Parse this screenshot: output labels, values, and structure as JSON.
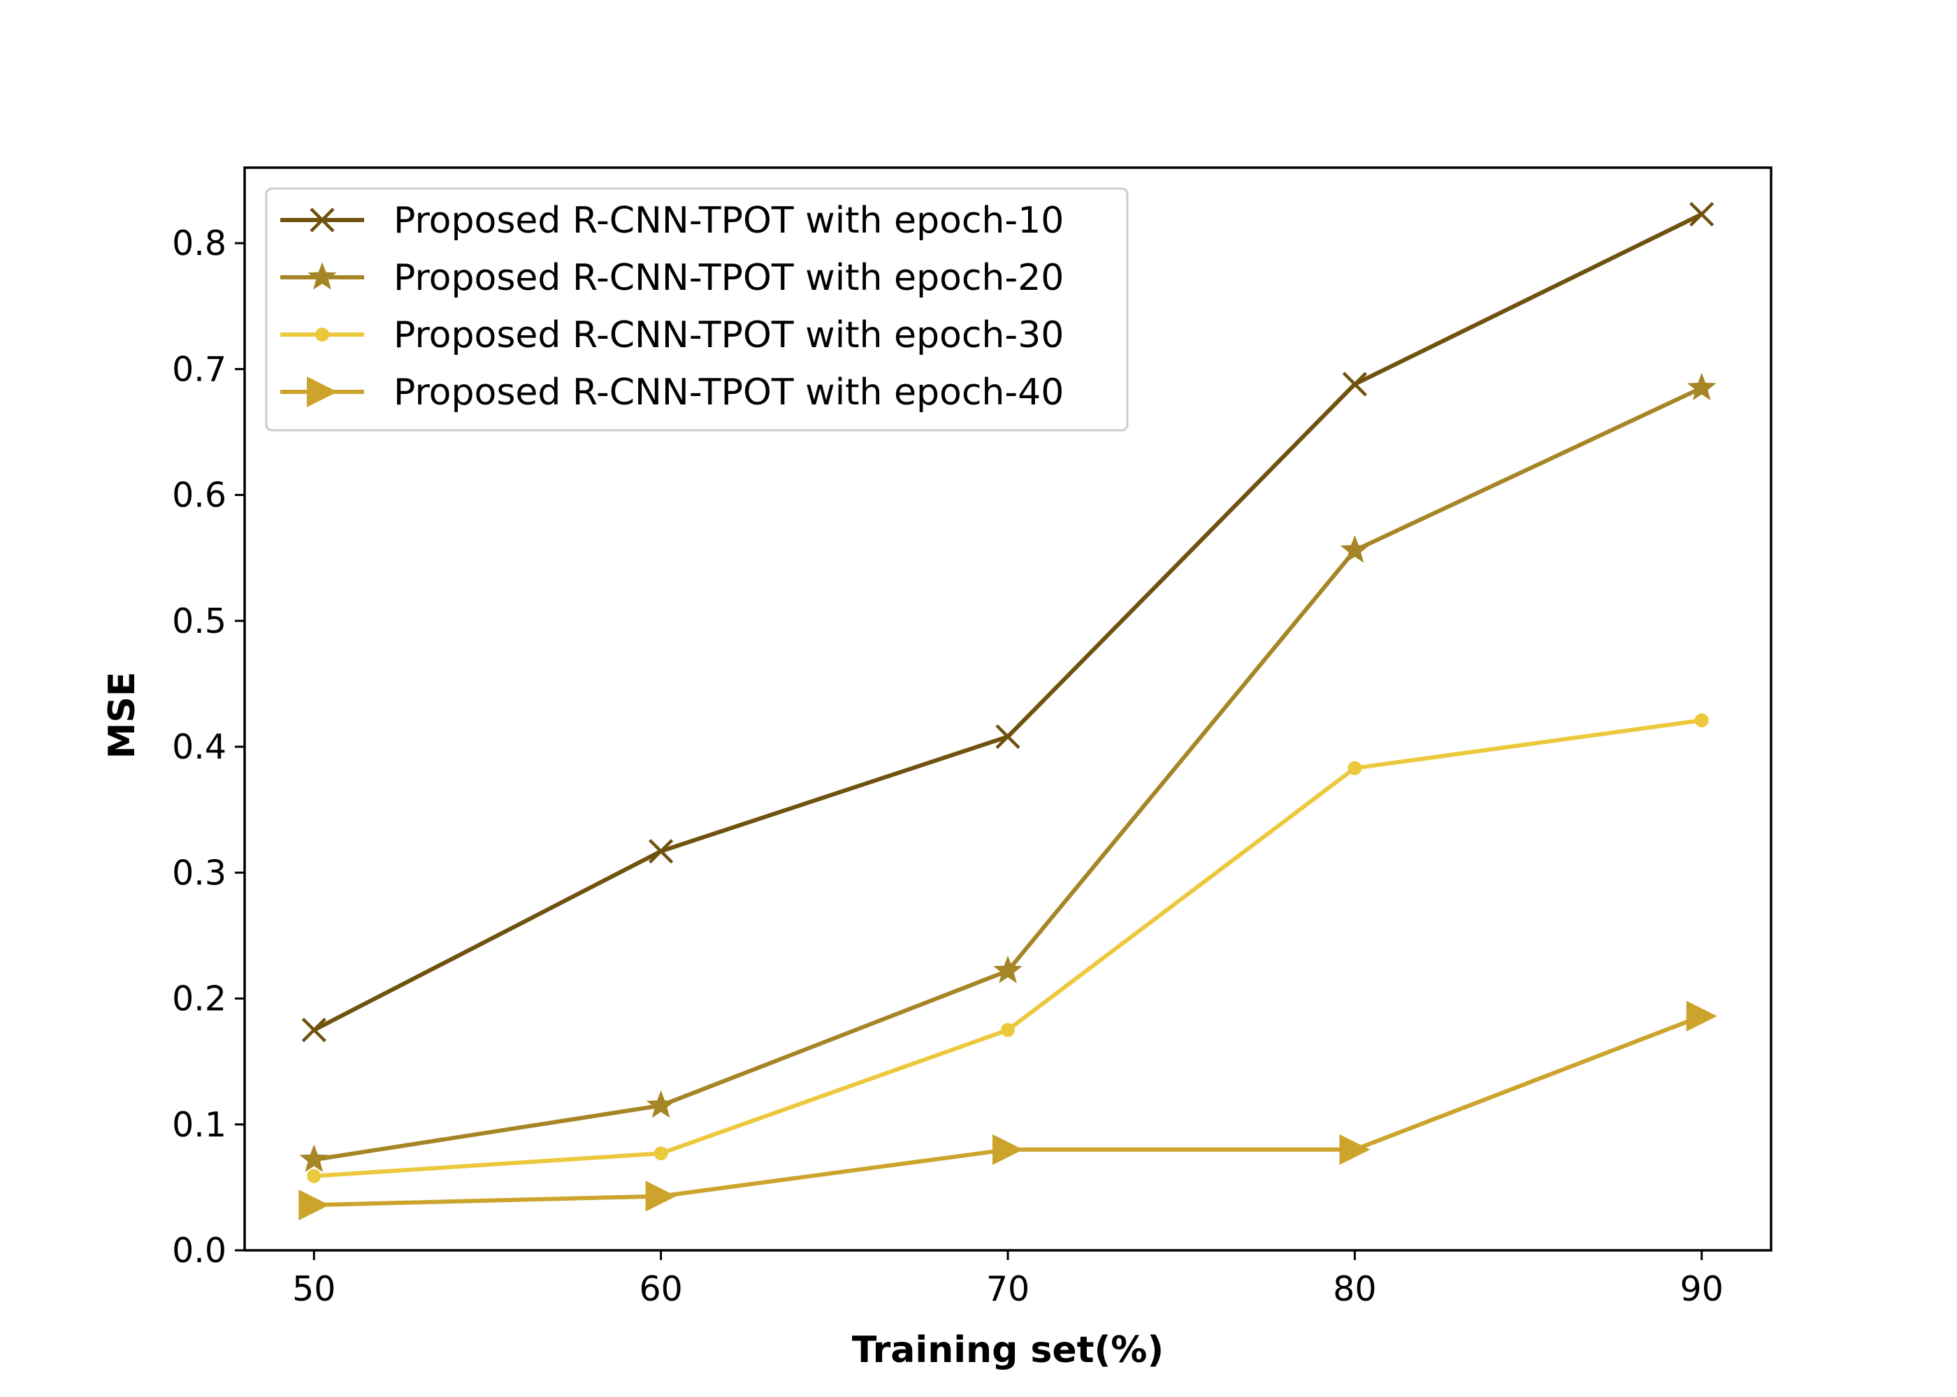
{
  "chart_data": {
    "type": "line",
    "xlabel": "Training set(%)",
    "ylabel": "MSE",
    "x": [
      50,
      60,
      70,
      80,
      90
    ],
    "xlim": [
      48,
      92
    ],
    "ylim": [
      0,
      0.86
    ],
    "xticks": [
      "50",
      "60",
      "70",
      "80",
      "90"
    ],
    "yticks": [
      "0.0",
      "0.1",
      "0.2",
      "0.3",
      "0.4",
      "0.5",
      "0.6",
      "0.7",
      "0.8"
    ],
    "grid": false,
    "legend_position": "upper-left",
    "series": [
      {
        "name": "Proposed R-CNN-TPOT with epoch-10",
        "color": "#6e520e",
        "marker": "x",
        "values": [
          0.175,
          0.317,
          0.408,
          0.688,
          0.823
        ]
      },
      {
        "name": "Proposed R-CNN-TPOT with epoch-20",
        "color": "#a68526",
        "marker": "star",
        "values": [
          0.072,
          0.115,
          0.222,
          0.556,
          0.685
        ]
      },
      {
        "name": "Proposed R-CNN-TPOT with epoch-30",
        "color": "#ecc83c",
        "marker": "circle",
        "values": [
          0.059,
          0.077,
          0.175,
          0.383,
          0.421
        ]
      },
      {
        "name": "Proposed R-CNN-TPOT with epoch-40",
        "color": "#cca42c",
        "marker": "triangle-right",
        "values": [
          0.036,
          0.043,
          0.08,
          0.08,
          0.186
        ]
      }
    ]
  }
}
